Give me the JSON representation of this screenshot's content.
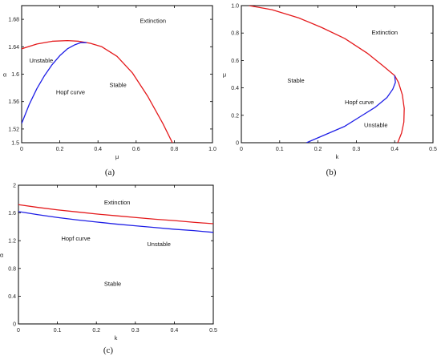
{
  "chart_data": [
    {
      "id": "a",
      "type": "line",
      "caption": "(a)",
      "xlabel": "μ",
      "ylabel": "α",
      "xlim": [
        0,
        1.0
      ],
      "ylim": [
        1.5,
        1.7
      ],
      "xticks": [
        0,
        0.2,
        0.4,
        0.6,
        0.8,
        1.0
      ],
      "xtick_labels": [
        "0",
        "0.2",
        "0.4",
        "0.6",
        "0.8",
        "1.0"
      ],
      "yticks": [
        1.52,
        1.56,
        1.6,
        1.64,
        1.68
      ],
      "ytick_labels": [
        "1.52",
        "1.56",
        "1.6",
        "1.64",
        "1.68"
      ],
      "extra_ytick_labels": [
        {
          "value": 1.5,
          "label": "1.5"
        }
      ],
      "series": [
        {
          "color": "#e41a1c",
          "x": [
            0,
            0.08,
            0.16,
            0.24,
            0.3,
            0.36,
            0.42,
            0.5,
            0.58,
            0.66,
            0.74,
            0.82,
            0.88
          ],
          "y": [
            1.637,
            1.644,
            1.648,
            1.649,
            1.648,
            1.645,
            1.64,
            1.626,
            1.602,
            1.568,
            1.528,
            1.483,
            1.45
          ]
        },
        {
          "color": "#1f1fe6",
          "x": [
            0,
            0.04,
            0.08,
            0.12,
            0.16,
            0.2,
            0.24,
            0.28,
            0.31,
            0.34
          ],
          "y": [
            1.528,
            1.556,
            1.579,
            1.598,
            1.614,
            1.627,
            1.637,
            1.643,
            1.646,
            1.646
          ]
        }
      ],
      "annotations": [
        {
          "text": "Extinction",
          "x": 0.62,
          "y": 1.675
        },
        {
          "text": "Unstable",
          "x": 0.04,
          "y": 1.617
        },
        {
          "text": "Stable",
          "x": 0.46,
          "y": 1.581
        },
        {
          "text": "Hopf curve",
          "x": 0.18,
          "y": 1.571
        }
      ]
    },
    {
      "id": "b",
      "type": "line",
      "caption": "(b)",
      "xlabel": "k",
      "ylabel": "μ",
      "xlim": [
        0,
        0.5
      ],
      "ylim": [
        0,
        1.0
      ],
      "xticks": [
        0,
        0.1,
        0.2,
        0.3,
        0.4,
        0.5
      ],
      "xtick_labels": [
        "0",
        "0.1",
        "0.2",
        "0.3",
        "0.4",
        "0.5"
      ],
      "yticks": [
        0,
        0.2,
        0.4,
        0.6,
        0.8,
        1.0
      ],
      "ytick_labels": [
        "0",
        "0.2",
        "0.4",
        "0.6",
        "0.8",
        "1.0"
      ],
      "series": [
        {
          "color": "#e41a1c",
          "x": [
            0.02,
            0.08,
            0.15,
            0.21,
            0.27,
            0.33,
            0.37,
            0.4,
            0.41,
            0.42,
            0.425,
            0.424,
            0.418,
            0.408
          ],
          "y": [
            1.0,
            0.97,
            0.91,
            0.84,
            0.76,
            0.65,
            0.56,
            0.49,
            0.44,
            0.35,
            0.25,
            0.15,
            0.07,
            0
          ]
        },
        {
          "color": "#1f1fe6",
          "x": [
            0.17,
            0.22,
            0.27,
            0.31,
            0.35,
            0.38,
            0.395,
            0.402,
            0.4
          ],
          "y": [
            0,
            0.06,
            0.12,
            0.19,
            0.26,
            0.33,
            0.39,
            0.44,
            0.49
          ]
        }
      ],
      "annotations": [
        {
          "text": "Extinction",
          "x": 0.34,
          "y": 0.79
        },
        {
          "text": "Stable",
          "x": 0.12,
          "y": 0.44
        },
        {
          "text": "Hopf curve",
          "x": 0.27,
          "y": 0.28
        },
        {
          "text": "Unstable",
          "x": 0.32,
          "y": 0.115
        }
      ]
    },
    {
      "id": "c",
      "type": "line",
      "caption": "(c)",
      "xlabel": "k",
      "ylabel": "α",
      "xlim": [
        0,
        0.5
      ],
      "ylim": [
        0,
        2.0
      ],
      "xticks": [
        0,
        0.1,
        0.2,
        0.3,
        0.4,
        0.5
      ],
      "xtick_labels": [
        "0",
        "0.1",
        "0.2",
        "0.3",
        "0.4",
        "0.5"
      ],
      "yticks": [
        0,
        0.4,
        0.8,
        1.2,
        1.6,
        2.0
      ],
      "ytick_labels": [
        "0",
        "0.4",
        "0.8",
        "1.2",
        "1.6",
        "2"
      ],
      "series": [
        {
          "color": "#e41a1c",
          "x": [
            0,
            0.05,
            0.1,
            0.15,
            0.2,
            0.25,
            0.3,
            0.35,
            0.4,
            0.45,
            0.5
          ],
          "y": [
            1.72,
            1.68,
            1.645,
            1.615,
            1.585,
            1.56,
            1.535,
            1.51,
            1.49,
            1.465,
            1.445
          ]
        },
        {
          "color": "#1f1fe6",
          "x": [
            0,
            0.05,
            0.1,
            0.15,
            0.2,
            0.25,
            0.3,
            0.35,
            0.4,
            0.45,
            0.5
          ],
          "y": [
            1.62,
            1.575,
            1.535,
            1.5,
            1.47,
            1.44,
            1.415,
            1.39,
            1.365,
            1.345,
            1.32
          ]
        }
      ],
      "annotations": [
        {
          "text": "Extinction",
          "x": 0.22,
          "y": 1.72
        },
        {
          "text": "Hopf curve",
          "x": 0.11,
          "y": 1.2
        },
        {
          "text": "Unstable",
          "x": 0.33,
          "y": 1.12
        },
        {
          "text": "Stable",
          "x": 0.22,
          "y": 0.55
        }
      ]
    }
  ]
}
